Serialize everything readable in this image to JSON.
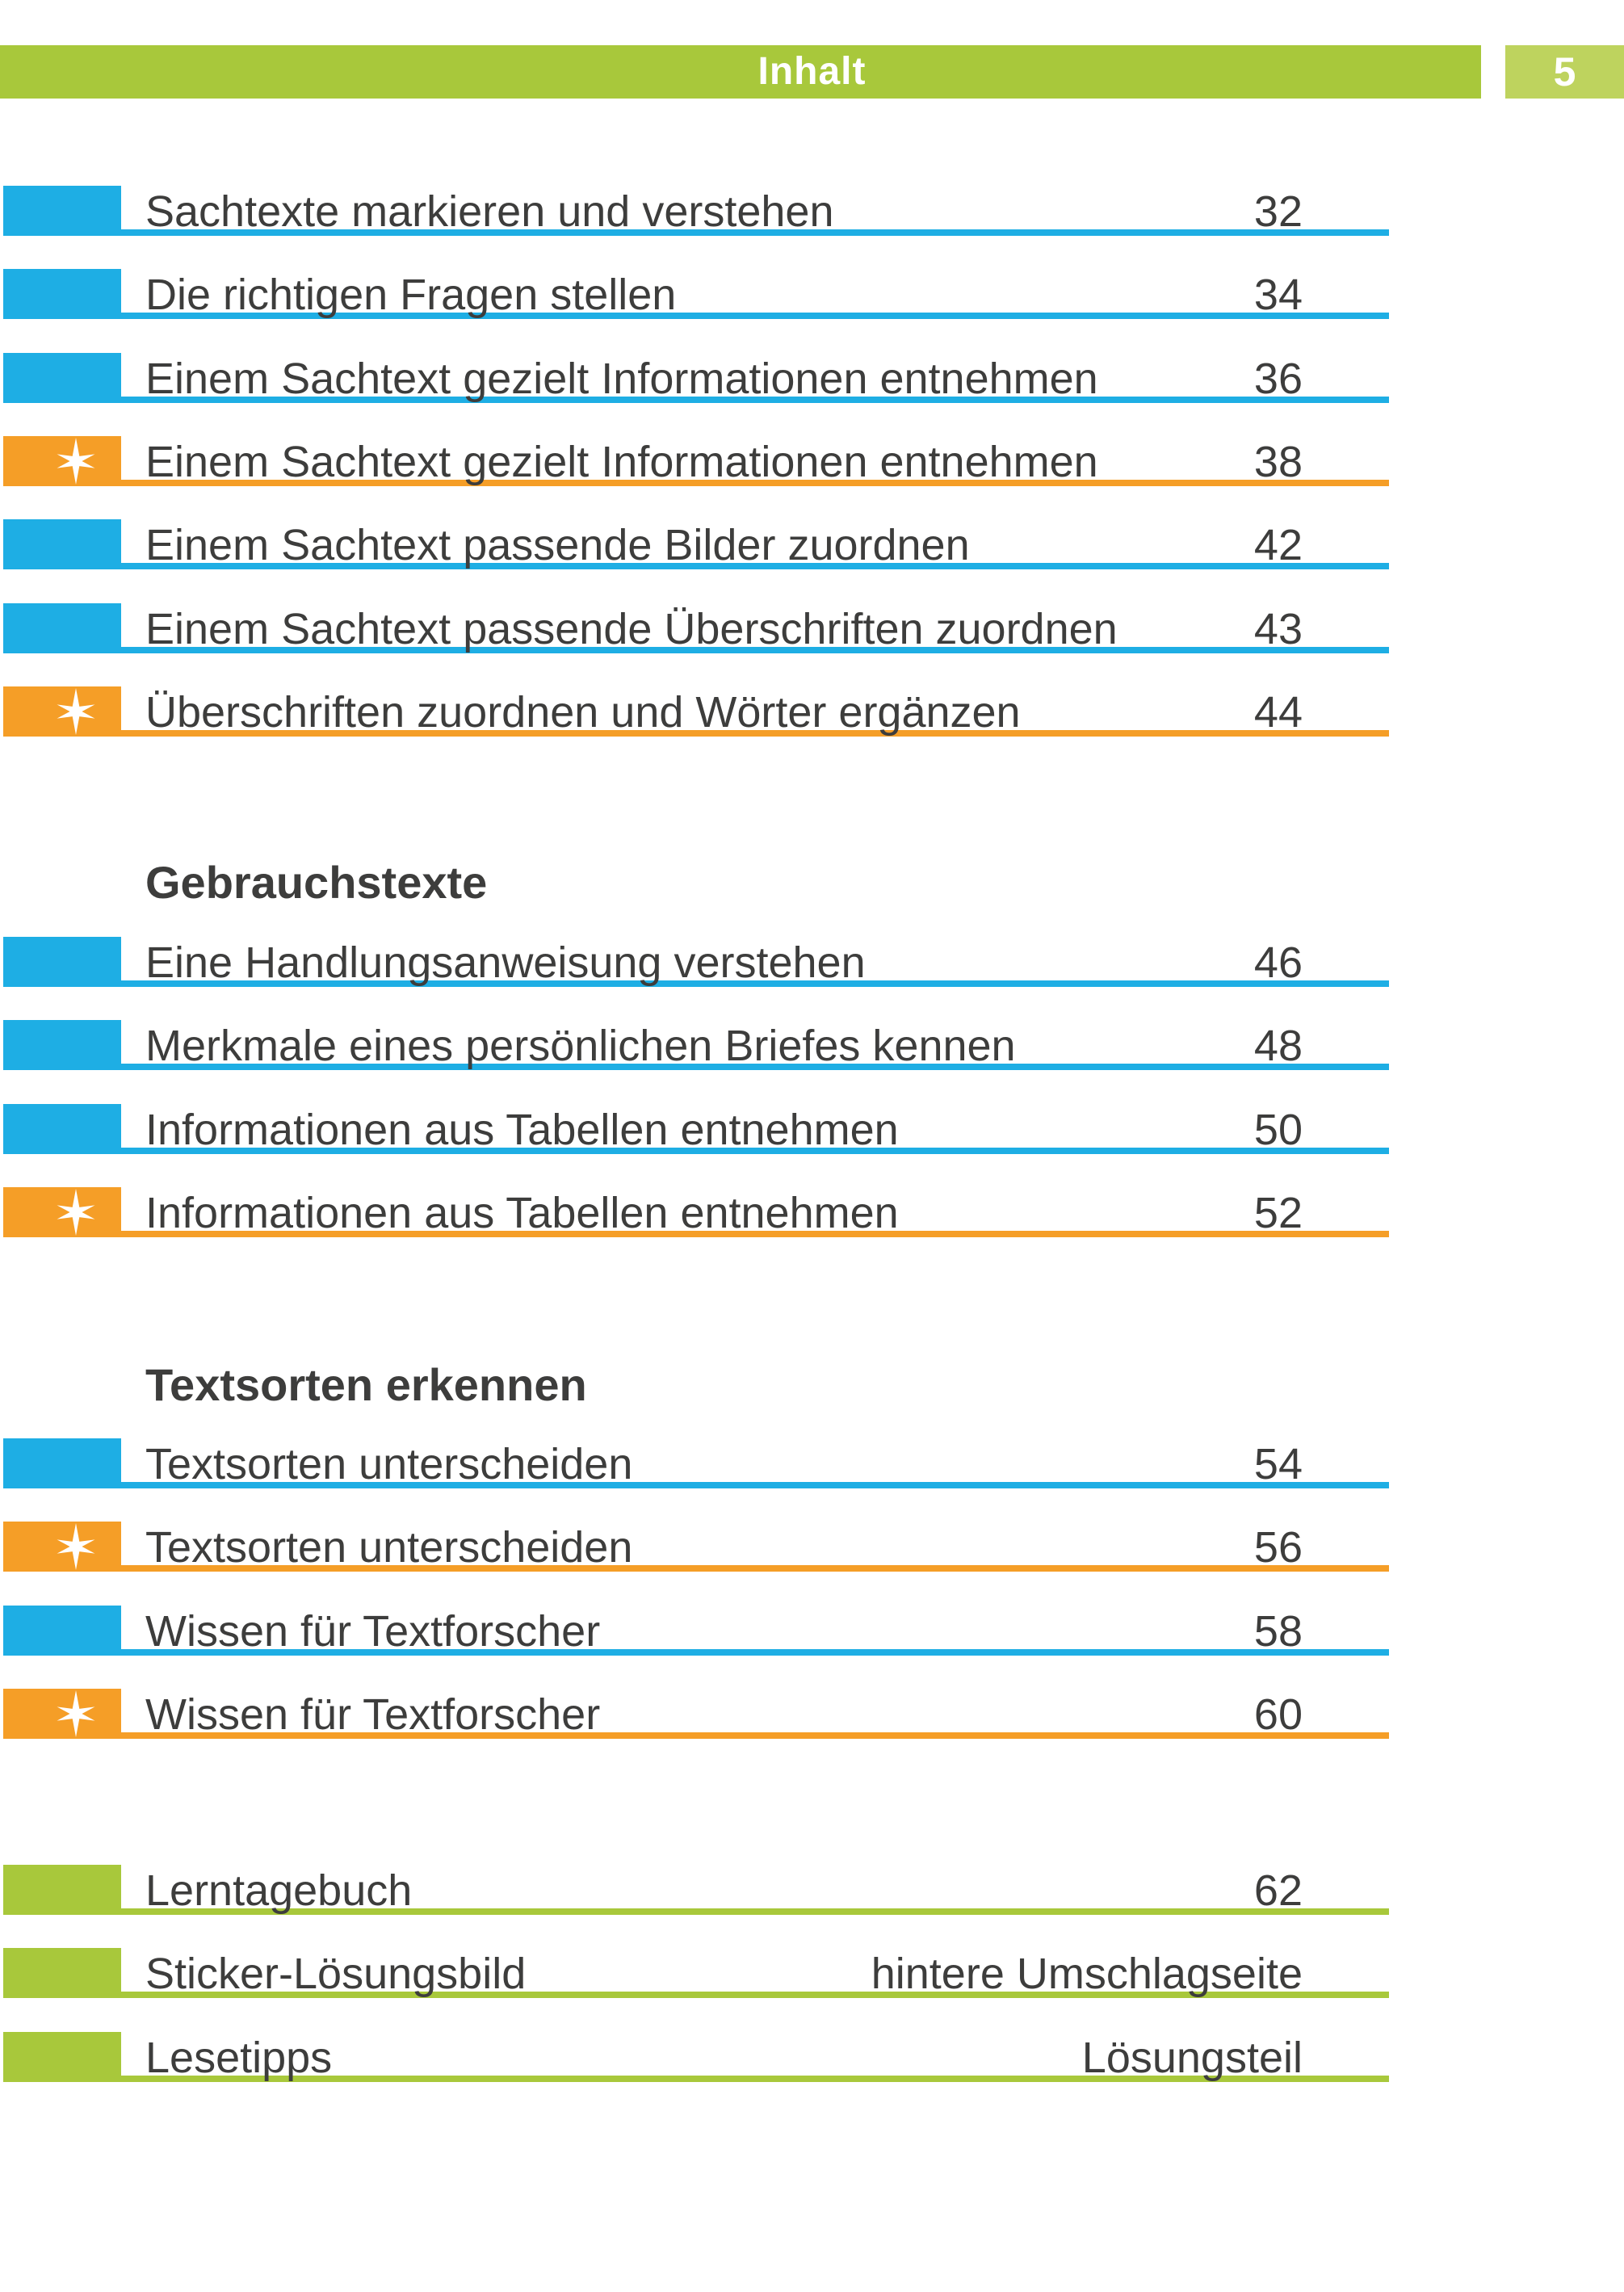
{
  "page": {
    "header_title": "Inhalt",
    "page_number": "5"
  },
  "colors": {
    "cyan": "#1EAEE4",
    "orange": "#F59E27",
    "green": "#A8C83B",
    "light_green": "#BED35E",
    "text": "#3D3D3C",
    "header_text": "#FFFFFF"
  },
  "sections": [
    {
      "heading": "",
      "items": [
        {
          "label": "Sachtexte markieren und verstehen",
          "page": "32",
          "marker": "cyan"
        },
        {
          "label": "Die richtigen Fragen stellen",
          "page": "34",
          "marker": "cyan"
        },
        {
          "label": "Einem Sachtext gezielt Informationen entnehmen",
          "page": "36",
          "marker": "cyan"
        },
        {
          "label": "Einem Sachtext gezielt Informationen entnehmen",
          "page": "38",
          "marker": "orange-star"
        },
        {
          "label": "Einem Sachtext passende Bilder zuordnen",
          "page": "42",
          "marker": "cyan"
        },
        {
          "label": "Einem Sachtext passende Überschriften zuordnen",
          "page": "43",
          "marker": "cyan"
        },
        {
          "label": "Überschriften zuordnen und Wörter ergänzen",
          "page": "44",
          "marker": "orange-star"
        }
      ]
    },
    {
      "heading": "Gebrauchstexte",
      "items": [
        {
          "label": "Eine Handlungsanweisung verstehen",
          "page": "46",
          "marker": "cyan"
        },
        {
          "label": "Merkmale eines persönlichen Briefes kennen",
          "page": "48",
          "marker": "cyan"
        },
        {
          "label": "Informationen aus Tabellen entnehmen",
          "page": "50",
          "marker": "cyan"
        },
        {
          "label": "Informationen aus Tabellen entnehmen",
          "page": "52",
          "marker": "orange-star"
        }
      ]
    },
    {
      "heading": "Textsorten erkennen",
      "items": [
        {
          "label": "Textsorten unterscheiden",
          "page": "54",
          "marker": "cyan"
        },
        {
          "label": "Textsorten unterscheiden",
          "page": "56",
          "marker": "orange-star"
        },
        {
          "label": "Wissen für Textforscher",
          "page": "58",
          "marker": "cyan"
        },
        {
          "label": "Wissen für Textforscher",
          "page": "60",
          "marker": "orange-star"
        }
      ]
    },
    {
      "heading": "",
      "items": [
        {
          "label": "Lerntagebuch",
          "page": "62",
          "marker": "green"
        },
        {
          "label": "Sticker-Lösungsbild",
          "page": "hintere Umschlagseite",
          "marker": "green"
        },
        {
          "label": "Lesetipps",
          "page": "Lösungsteil",
          "marker": "green"
        }
      ]
    }
  ]
}
